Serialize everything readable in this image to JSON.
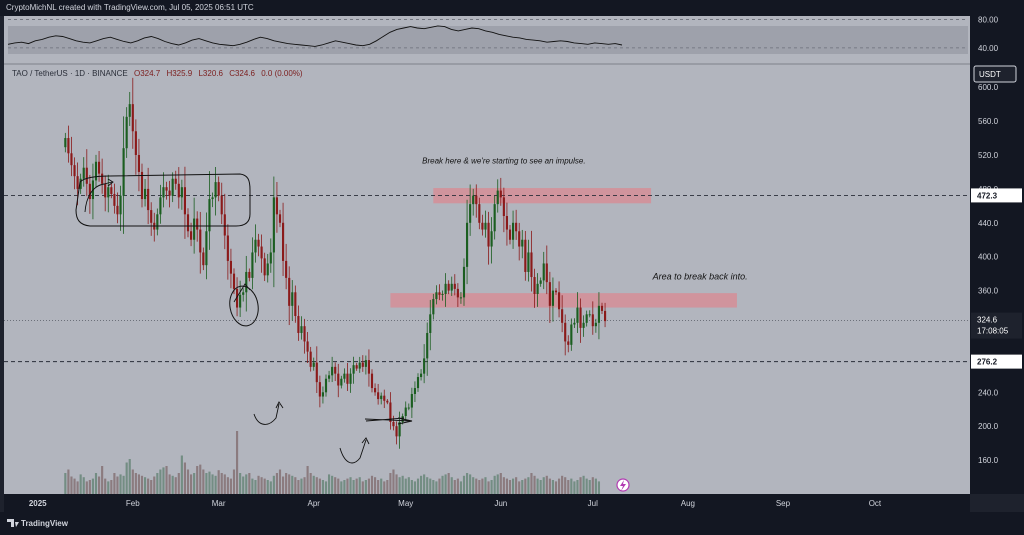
{
  "header": {
    "attribution": "CryptoMichNL created with TradingView.com, Jul 05, 2025 06:51 UTC"
  },
  "symbol_bar": {
    "symbol": "TAO / TetherUS · 1D · BINANCE",
    "open": "O324.7",
    "high": "H325.9",
    "low": "L320.6",
    "close": "C324.6",
    "change": "0.0 (0.00%)"
  },
  "currency_badge": "USDT",
  "footer": {
    "brand": "TradingView"
  },
  "colors": {
    "up": "#1b5e20",
    "down": "#8b1a1a",
    "zone_fill": "#d98a92",
    "background": "#b2b5be",
    "panel": "#131722",
    "current_price_label": "#1e222d"
  },
  "chart_data": [
    {
      "type": "line",
      "name": "oscillator",
      "ylim": [
        20,
        85
      ],
      "y_ticks": [
        "80.00",
        "40.00"
      ],
      "y_tick_values": [
        80,
        40
      ],
      "values": [
        45,
        47,
        48,
        46,
        50,
        52,
        55,
        57,
        56,
        53,
        50,
        48,
        47,
        50,
        53,
        55,
        52,
        49,
        47,
        50,
        54,
        56,
        53,
        49,
        46,
        44,
        47,
        51,
        53,
        50,
        47,
        45,
        44,
        43,
        45,
        48,
        52,
        55,
        53,
        50,
        48,
        46,
        45,
        44,
        43,
        42,
        44,
        47,
        50,
        48,
        46,
        44,
        43,
        45,
        50,
        56,
        62,
        66,
        68,
        70,
        68,
        67,
        69,
        71,
        70,
        66,
        64,
        66,
        68,
        67,
        64,
        62,
        59,
        57,
        55,
        54,
        52,
        51,
        50,
        48,
        49,
        50,
        49,
        47,
        46,
        45,
        47,
        46,
        45,
        46,
        44
      ]
    },
    {
      "type": "candlestick",
      "name": "TAO / TetherUS",
      "ylim": [
        120,
        625
      ],
      "y_ticks": [
        "600.0",
        "560.0",
        "520.0",
        "480.0",
        "440.0",
        "400.0",
        "360.0",
        "320.0",
        "280.0",
        "240.0",
        "200.0",
        "160.0"
      ],
      "y_tick_values": [
        600,
        560,
        520,
        480,
        440,
        400,
        360,
        320,
        280,
        240,
        200,
        160
      ],
      "x_ticks": [
        "2025",
        "Feb",
        "Mar",
        "Apr",
        "May",
        "Jun",
        "Jul",
        "Aug",
        "Sep",
        "Oct"
      ],
      "x_tick_days": [
        0,
        31,
        59,
        90,
        120,
        151,
        181,
        212,
        243,
        273
      ],
      "x_range_days": [
        -11,
        304
      ],
      "horizontal_levels": [
        {
          "value": 472.3,
          "label": "472.3",
          "style": "dashed"
        },
        {
          "value": 276.2,
          "label": "276.2",
          "style": "dashed"
        }
      ],
      "current_price": {
        "value": 324.6,
        "label": "324.6",
        "countdown": "17:08:05"
      },
      "zones": [
        {
          "from_day": 129,
          "to_day": 200,
          "low": 463,
          "high": 481
        },
        {
          "from_day": 115,
          "to_day": 228,
          "low": 340,
          "high": 357
        }
      ],
      "annotations": [
        {
          "text": "Break here & we're starting to see an impulse.",
          "day": 152,
          "price": 510
        },
        {
          "text": "Area to break back into.",
          "day": 216,
          "price": 373
        }
      ],
      "closes": [
        540,
        522,
        508,
        495,
        480,
        492,
        505,
        486,
        468,
        490,
        512,
        498,
        486,
        470,
        482,
        474,
        460,
        450,
        472,
        528,
        565,
        580,
        548,
        520,
        500,
        468,
        480,
        455,
        440,
        432,
        450,
        470,
        482,
        478,
        472,
        492,
        486,
        470,
        482,
        450,
        430,
        420,
        445,
        432,
        405,
        390,
        430,
        468,
        470,
        488,
        472,
        450,
        425,
        395,
        380,
        362,
        340,
        355,
        358,
        382,
        375,
        405,
        420,
        412,
        398,
        378,
        392,
        405,
        470,
        450,
        440,
        395,
        375,
        342,
        358,
        330,
        310,
        318,
        300,
        288,
        270,
        275,
        252,
        235,
        240,
        256,
        260,
        270,
        262,
        248,
        256,
        262,
        250,
        262,
        272,
        268,
        275,
        270,
        278,
        262,
        245,
        240,
        232,
        236,
        230,
        228,
        205,
        200,
        188,
        205,
        212,
        222,
        222,
        238,
        245,
        258,
        262,
        280,
        310,
        332,
        350,
        358,
        355,
        356,
        368,
        360,
        368,
        362,
        352,
        352,
        388,
        440,
        462,
        472,
        462,
        440,
        432,
        440,
        412,
        430,
        462,
        478,
        470,
        448,
        432,
        420,
        440,
        430,
        412,
        420,
        382,
        405,
        376,
        356,
        368,
        372,
        392,
        370,
        342,
        360,
        358,
        338,
        322,
        300,
        296,
        320,
        322,
        340,
        316,
        322,
        332,
        332,
        318,
        322,
        342,
        336,
        324
      ]
    },
    {
      "type": "bar",
      "name": "volume",
      "ylim": [
        0,
        100
      ],
      "values": [
        30,
        35,
        25,
        22,
        18,
        28,
        24,
        18,
        20,
        22,
        30,
        25,
        40,
        22,
        18,
        20,
        30,
        25,
        28,
        26,
        45,
        50,
        35,
        30,
        28,
        26,
        24,
        22,
        20,
        25,
        30,
        35,
        38,
        40,
        28,
        26,
        24,
        30,
        55,
        45,
        35,
        28,
        30,
        40,
        42,
        35,
        30,
        32,
        28,
        26,
        34,
        30,
        28,
        24,
        22,
        35,
        90,
        30,
        25,
        28,
        30,
        22,
        20,
        26,
        24,
        22,
        20,
        18,
        26,
        30,
        35,
        25,
        30,
        28,
        26,
        24,
        20,
        22,
        24,
        40,
        30,
        26,
        24,
        22,
        20,
        18,
        28,
        26,
        24,
        22,
        18,
        20,
        22,
        24,
        20,
        22,
        24,
        18,
        20,
        22,
        26,
        24,
        20,
        22,
        18,
        20,
        30,
        35,
        28,
        24,
        26,
        22,
        24,
        20,
        18,
        22,
        26,
        28,
        24,
        22,
        20,
        18,
        22,
        26,
        28,
        30,
        24,
        20,
        22,
        18,
        26,
        30,
        28,
        24,
        22,
        20,
        22,
        24,
        18,
        20,
        26,
        28,
        30,
        24,
        22,
        20,
        22,
        24,
        18,
        20,
        22,
        24,
        30,
        26,
        22,
        20,
        24,
        26,
        22,
        20,
        18,
        22,
        26,
        24,
        20,
        22,
        18,
        20,
        24,
        26,
        22,
        20,
        24,
        22,
        18
      ]
    }
  ]
}
